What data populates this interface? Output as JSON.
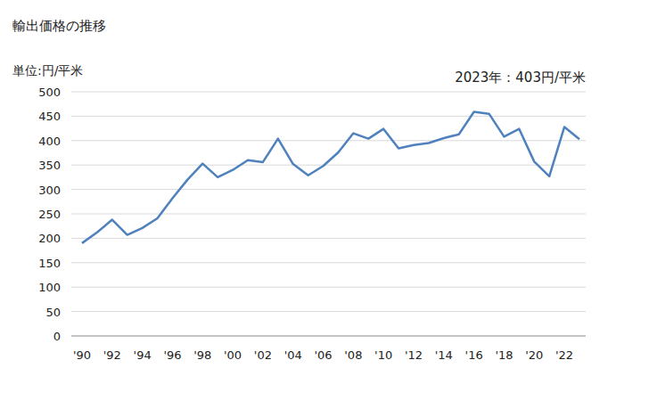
{
  "chart_data": {
    "type": "line",
    "title": "輸出価格の推移",
    "y_label": "単位:円/平米",
    "annotation": "2023年：403円/平米",
    "categories": [
      "'90",
      null,
      "'92",
      null,
      "'94",
      null,
      "'96",
      null,
      "'98",
      null,
      "'00",
      null,
      "'02",
      null,
      "'04",
      null,
      "'06",
      null,
      "'08",
      null,
      "'10",
      null,
      "'12",
      null,
      "'14",
      null,
      "'16",
      null,
      "'18",
      null,
      "'20",
      null,
      "'22",
      null
    ],
    "values": [
      190,
      212,
      238,
      207,
      221,
      241,
      282,
      320,
      353,
      325,
      340,
      360,
      356,
      404,
      352,
      329,
      348,
      376,
      415,
      404,
      424,
      384,
      391,
      395,
      405,
      413,
      459,
      455,
      408,
      424,
      357,
      327,
      428,
      403
    ],
    "color": "#4f81bd",
    "ylim": [
      0,
      500
    ],
    "yticks": [
      0,
      50,
      100,
      150,
      200,
      250,
      300,
      350,
      400,
      450,
      500
    ],
    "grid": true
  }
}
